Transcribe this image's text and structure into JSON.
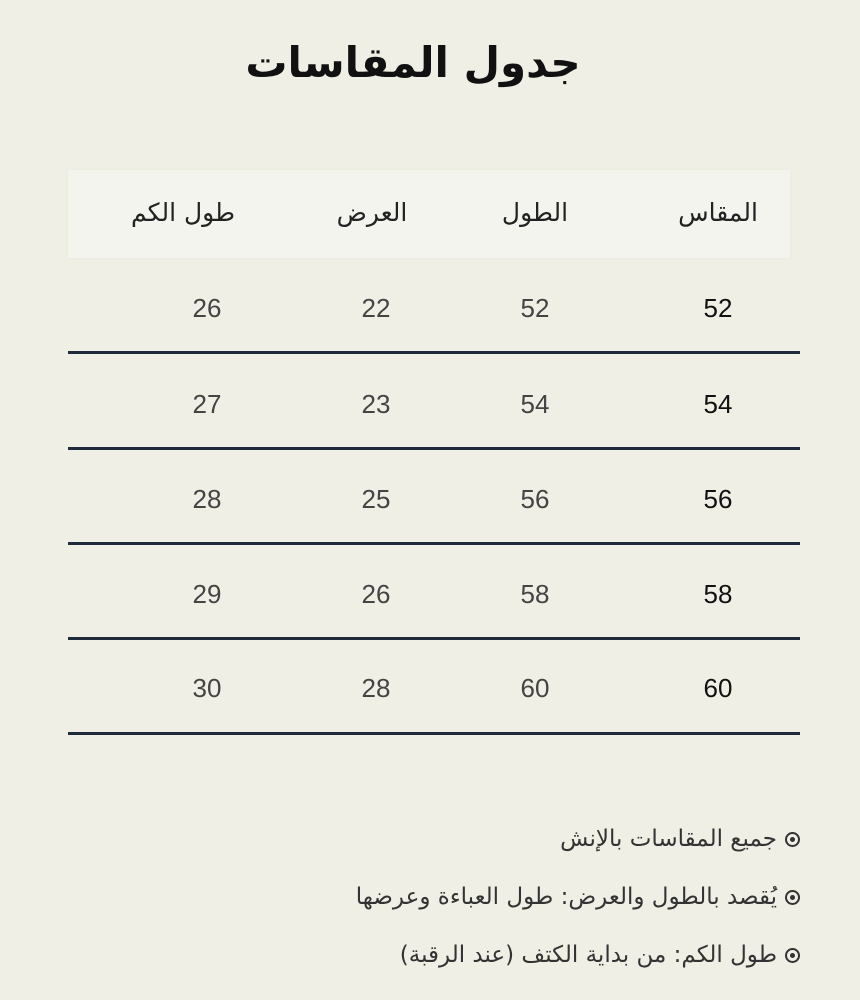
{
  "title": "جدول المقاسات",
  "table": {
    "headers": [
      "المقاس",
      "الطول",
      "العرض",
      "طول الكم"
    ],
    "rows": [
      [
        "52",
        "52",
        "22",
        "26"
      ],
      [
        "54",
        "54",
        "23",
        "27"
      ],
      [
        "56",
        "56",
        "25",
        "28"
      ],
      [
        "58",
        "58",
        "26",
        "29"
      ],
      [
        "60",
        "60",
        "28",
        "30"
      ]
    ]
  },
  "notes": [
    "جميع المقاسات بالإنش",
    "يُقصد بالطول والعرض: طول العباءة وعرضها",
    "طول الكم: من بداية الكتف (عند الرقبة)"
  ],
  "colors": {
    "background": "#f0efe6",
    "divider": "#1f2a3a"
  }
}
